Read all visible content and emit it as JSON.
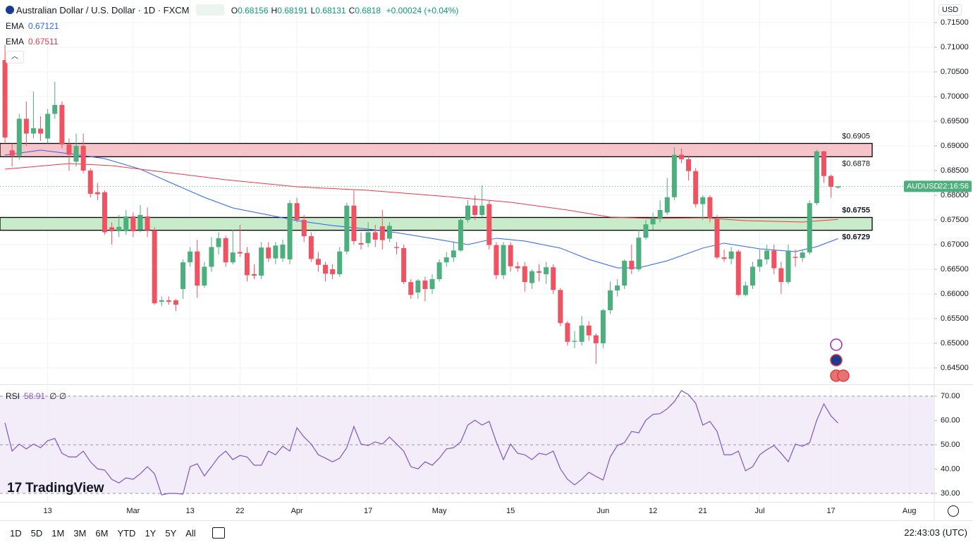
{
  "header": {
    "ohlc": [
      {
        "label": "O",
        "value": 0.68156
      },
      {
        "label": "H",
        "value": 0.68191
      },
      {
        "label": "L",
        "value": 0.68131
      },
      {
        "label": "C",
        "value": 0.6818
      }
    ],
    "change": "+0.00024 (+0.04%)",
    "currency": "USD"
  },
  "chart_data": [
    {
      "type": "candlestick",
      "title": "Australian Dollar / U.S. Dollar · 1D · FXCM",
      "up_color": "#4caf7d",
      "down_color": "#ef5361",
      "xlim": [
        -0.7,
        130.5
      ],
      "ylim": [
        0.64171,
        0.71957
      ],
      "xticks": [
        {
          "value": 6,
          "label": "13"
        },
        {
          "value": 18,
          "label": "Mar"
        },
        {
          "value": 26,
          "label": "13"
        },
        {
          "value": 33,
          "label": "22"
        },
        {
          "value": 41,
          "label": "Apr"
        },
        {
          "value": 51,
          "label": "17"
        },
        {
          "value": 61,
          "label": "May"
        },
        {
          "value": 71,
          "label": "15"
        },
        {
          "value": 84,
          "label": "Jun"
        },
        {
          "value": 91,
          "label": "12"
        },
        {
          "value": 98,
          "label": "21"
        },
        {
          "value": 106,
          "label": "Jul"
        },
        {
          "value": 116,
          "label": "17"
        },
        {
          "value": 127,
          "label": "Aug"
        }
      ],
      "yticks": [
        {
          "value": 0.715,
          "label": "0.71500"
        },
        {
          "value": 0.71,
          "label": "0.71000"
        },
        {
          "value": 0.705,
          "label": "0.70500"
        },
        {
          "value": 0.7,
          "label": "0.70000"
        },
        {
          "value": 0.695,
          "label": "0.69500"
        },
        {
          "value": 0.69,
          "label": "0.69000"
        },
        {
          "value": 0.685,
          "label": "0.68500"
        },
        {
          "value": 0.68,
          "label": "0.68000"
        },
        {
          "value": 0.675,
          "label": "0.67500"
        },
        {
          "value": 0.67,
          "label": "0.67000"
        },
        {
          "value": 0.665,
          "label": "0.66500"
        },
        {
          "value": 0.66,
          "label": "0.66000"
        },
        {
          "value": 0.655,
          "label": "0.65500"
        },
        {
          "value": 0.65,
          "label": "0.65000"
        },
        {
          "value": 0.645,
          "label": "0.64500"
        }
      ],
      "grid": true,
      "open": [
        0.7074,
        0.6891,
        0.688,
        0.6955,
        0.6925,
        0.6935,
        0.6915,
        0.6965,
        0.6983,
        0.6903,
        0.6868,
        0.69,
        0.685,
        0.6806,
        0.6806,
        0.6735,
        0.6727,
        0.6727,
        0.6757,
        0.673,
        0.6757,
        0.6729,
        0.6584,
        0.6587,
        0.6587,
        0.661,
        0.6664,
        0.6686,
        0.6617,
        0.6655,
        0.6695,
        0.6713,
        0.6664,
        0.6685,
        0.6683,
        0.664,
        0.6637,
        0.6694,
        0.6672,
        0.6672,
        0.667,
        0.6784,
        0.675,
        0.6717,
        0.6671,
        0.6659,
        0.665,
        0.664,
        0.6686,
        0.6779,
        0.6703,
        0.6703,
        0.6725,
        0.6737,
        0.6712,
        0.6695,
        0.6693,
        0.6624,
        0.6603,
        0.6627,
        0.661,
        0.663,
        0.6664,
        0.6674,
        0.6688,
        0.675,
        0.6779,
        0.676,
        0.6782,
        0.6699,
        0.6638,
        0.6699,
        0.6656,
        0.6656,
        0.6622,
        0.6646,
        0.664,
        0.6654,
        0.6608,
        0.6541,
        0.6503,
        0.6503,
        0.6536,
        0.6516,
        0.65,
        0.6567,
        0.6607,
        0.6617,
        0.6667,
        0.665,
        0.6714,
        0.6741,
        0.6753,
        0.6765,
        0.6796,
        0.6882,
        0.6873,
        0.6849,
        0.6782,
        0.6796,
        0.6753,
        0.6674,
        0.6671,
        0.6686,
        0.6598,
        0.6617,
        0.6655,
        0.667,
        0.6688,
        0.6652,
        0.6624,
        0.6675,
        0.6673,
        0.6684,
        0.6784,
        0.6889,
        0.6839,
        0.68156
      ],
      "high": [
        0.7105,
        0.6905,
        0.6965,
        0.699,
        0.701,
        0.696,
        0.6975,
        0.703,
        0.699,
        0.6915,
        0.6925,
        0.6925,
        0.6855,
        0.6825,
        0.681,
        0.6745,
        0.676,
        0.677,
        0.6765,
        0.678,
        0.6775,
        0.6735,
        0.6595,
        0.6595,
        0.659,
        0.667,
        0.6695,
        0.671,
        0.6665,
        0.6715,
        0.6725,
        0.6718,
        0.673,
        0.674,
        0.6695,
        0.666,
        0.6705,
        0.6705,
        0.6705,
        0.671,
        0.679,
        0.6795,
        0.676,
        0.6725,
        0.6685,
        0.6665,
        0.666,
        0.6695,
        0.6785,
        0.681,
        0.6725,
        0.6745,
        0.674,
        0.677,
        0.6745,
        0.6705,
        0.67,
        0.663,
        0.663,
        0.6635,
        0.664,
        0.667,
        0.6685,
        0.6705,
        0.6755,
        0.679,
        0.68,
        0.682,
        0.679,
        0.6705,
        0.6705,
        0.6705,
        0.6665,
        0.6665,
        0.665,
        0.666,
        0.6665,
        0.666,
        0.6612,
        0.6545,
        0.6525,
        0.6555,
        0.6545,
        0.652,
        0.657,
        0.6625,
        0.663,
        0.667,
        0.67,
        0.673,
        0.675,
        0.6765,
        0.679,
        0.6835,
        0.6897,
        0.6895,
        0.688,
        0.6855,
        0.68,
        0.68,
        0.676,
        0.669,
        0.6695,
        0.669,
        0.6625,
        0.6665,
        0.669,
        0.67,
        0.67,
        0.6665,
        0.67,
        0.669,
        0.669,
        0.679,
        0.6892,
        0.689,
        0.6842,
        0.68191
      ],
      "low": [
        0.6905,
        0.6858,
        0.6872,
        0.69,
        0.6915,
        0.691,
        0.6905,
        0.6955,
        0.6895,
        0.685,
        0.6858,
        0.6845,
        0.6795,
        0.679,
        0.672,
        0.67,
        0.6715,
        0.672,
        0.6715,
        0.6725,
        0.6715,
        0.6578,
        0.6575,
        0.6578,
        0.6565,
        0.659,
        0.6655,
        0.6592,
        0.6612,
        0.6645,
        0.668,
        0.6655,
        0.666,
        0.6675,
        0.6625,
        0.663,
        0.663,
        0.6665,
        0.666,
        0.6665,
        0.666,
        0.6745,
        0.6705,
        0.6665,
        0.6645,
        0.6625,
        0.663,
        0.6635,
        0.668,
        0.67,
        0.669,
        0.6695,
        0.6695,
        0.669,
        0.6705,
        0.668,
        0.662,
        0.659,
        0.659,
        0.6585,
        0.66,
        0.6625,
        0.6655,
        0.6665,
        0.6685,
        0.6745,
        0.675,
        0.6755,
        0.669,
        0.663,
        0.663,
        0.6645,
        0.6645,
        0.6605,
        0.661,
        0.6625,
        0.662,
        0.66,
        0.6535,
        0.6495,
        0.649,
        0.6495,
        0.6505,
        0.6458,
        0.649,
        0.656,
        0.6595,
        0.661,
        0.664,
        0.6645,
        0.671,
        0.673,
        0.6745,
        0.676,
        0.679,
        0.6865,
        0.683,
        0.6775,
        0.675,
        0.6745,
        0.667,
        0.6665,
        0.666,
        0.6595,
        0.6595,
        0.661,
        0.6645,
        0.666,
        0.664,
        0.66,
        0.662,
        0.6655,
        0.6665,
        0.668,
        0.678,
        0.6825,
        0.6795,
        0.68131
      ],
      "close": [
        0.6917,
        0.688,
        0.6955,
        0.6925,
        0.6936,
        0.6925,
        0.6965,
        0.6983,
        0.6903,
        0.6882,
        0.69,
        0.685,
        0.6803,
        0.6802,
        0.6725,
        0.6727,
        0.6736,
        0.6757,
        0.6727,
        0.676,
        0.6729,
        0.6581,
        0.6587,
        0.6584,
        0.6578,
        0.6664,
        0.6686,
        0.6617,
        0.6655,
        0.6695,
        0.6713,
        0.6664,
        0.6684,
        0.6682,
        0.6638,
        0.6637,
        0.6694,
        0.6672,
        0.6698,
        0.67,
        0.6784,
        0.675,
        0.6717,
        0.6671,
        0.6659,
        0.6641,
        0.664,
        0.6686,
        0.6779,
        0.6707,
        0.67,
        0.6725,
        0.671,
        0.6709,
        0.6738,
        0.6693,
        0.6624,
        0.6598,
        0.6627,
        0.661,
        0.663,
        0.6664,
        0.6674,
        0.6688,
        0.675,
        0.6779,
        0.676,
        0.6779,
        0.6699,
        0.6638,
        0.6699,
        0.6656,
        0.6652,
        0.6624,
        0.6646,
        0.6643,
        0.6654,
        0.6608,
        0.6541,
        0.6503,
        0.6505,
        0.6536,
        0.6516,
        0.65,
        0.6567,
        0.6607,
        0.6617,
        0.6667,
        0.665,
        0.6714,
        0.6741,
        0.6753,
        0.677,
        0.6796,
        0.6882,
        0.6873,
        0.6849,
        0.6782,
        0.6796,
        0.6753,
        0.6674,
        0.6671,
        0.6686,
        0.6598,
        0.6617,
        0.6655,
        0.667,
        0.6688,
        0.6652,
        0.6624,
        0.6688,
        0.6673,
        0.6684,
        0.6784,
        0.6889,
        0.6839,
        0.6817,
        0.6818
      ],
      "lines": [
        {
          "name": "EMA",
          "color": "#2962ff",
          "last": 0.67121,
          "x": [
            0,
            5,
            9,
            14,
            19,
            23,
            28,
            32,
            37,
            41,
            46,
            51,
            55,
            61,
            65,
            69,
            73,
            78,
            82,
            86,
            89,
            93,
            98,
            101,
            106,
            111,
            114,
            117
          ],
          "values": [
            0.68814,
            0.68914,
            0.68843,
            0.68743,
            0.68529,
            0.68271,
            0.67957,
            0.67743,
            0.676,
            0.67486,
            0.67386,
            0.67314,
            0.67243,
            0.671,
            0.67,
            0.67129,
            0.67071,
            0.66929,
            0.667,
            0.66529,
            0.66529,
            0.66671,
            0.66929,
            0.67029,
            0.66914,
            0.66857,
            0.66957,
            0.67121
          ]
        },
        {
          "name": "EMA",
          "color": "#f23645",
          "last": 0.67511,
          "x": [
            0,
            9,
            15,
            23,
            31,
            41,
            51,
            61,
            71,
            79,
            85,
            91,
            98,
            104,
            112,
            117
          ],
          "values": [
            0.68529,
            0.68643,
            0.686,
            0.68457,
            0.68314,
            0.68171,
            0.681,
            0.67986,
            0.67857,
            0.677,
            0.67557,
            0.67529,
            0.67543,
            0.67486,
            0.67457,
            0.67511
          ]
        }
      ],
      "zones": [
        {
          "color": "#f7c5c9",
          "top": {
            "value": 0.6905,
            "label": "$0.6905"
          },
          "bottom": {
            "value": 0.6878,
            "label": "$0.6878"
          }
        },
        {
          "color": "#c8ebc9",
          "top": {
            "value": 0.6755,
            "label": "$0.6755"
          },
          "bottom": {
            "value": 0.6729,
            "label": "$0.6729"
          }
        }
      ],
      "last_price": {
        "name": "AUDUSD",
        "time": "22:16:56",
        "value": 0.6818,
        "color": "#4caf7d"
      }
    },
    {
      "type": "line",
      "name": "RSI",
      "last": 58.91,
      "inputs": "∅ ∅",
      "color": "#7e57c2",
      "xlim": [
        -0.7,
        130.5
      ],
      "ylim": [
        26.52,
        74.64
      ],
      "yticks": [
        {
          "value": 70,
          "label": "70.00"
        },
        {
          "value": 60,
          "label": "60.00"
        },
        {
          "value": 50,
          "label": "50.00"
        },
        {
          "value": 40,
          "label": "40.00"
        },
        {
          "value": 30,
          "label": "30.00"
        }
      ],
      "band": [
        30,
        70
      ],
      "levels": [
        70,
        50,
        30
      ],
      "values": [
        59,
        47.4,
        50.3,
        48.3,
        50.3,
        48.8,
        51.7,
        52.6,
        46.5,
        45,
        45,
        47.4,
        43,
        40.1,
        39.6,
        35.8,
        34.3,
        36.4,
        35.8,
        38.1,
        41,
        38.1,
        29.4,
        30,
        30,
        29.7,
        41,
        42.2,
        37.2,
        41,
        45,
        47.4,
        43.9,
        45.6,
        45,
        41.6,
        41.6,
        47.4,
        45.9,
        49.4,
        47.4,
        57,
        53.2,
        50.3,
        45.9,
        44.5,
        43,
        44.5,
        48.8,
        57.5,
        50.3,
        49.7,
        51.2,
        50.3,
        53.2,
        50.3,
        47.4,
        41,
        40.1,
        43,
        41.6,
        44.5,
        48.3,
        48.8,
        51.2,
        58.1,
        60.1,
        58.1,
        59.6,
        51.2,
        43.9,
        50.3,
        46.5,
        45.9,
        43.9,
        46.5,
        45.9,
        47.4,
        40.1,
        35.8,
        33.5,
        35.8,
        38.7,
        37,
        35.5,
        45,
        49.7,
        50.9,
        55.5,
        54.9,
        60.1,
        62.5,
        62.8,
        64.8,
        67.7,
        72.3,
        70.6,
        67.1,
        58.1,
        59.6,
        55.5,
        45.9,
        45.9,
        47.4,
        39.3,
        41,
        45.9,
        48,
        49.7,
        46.5,
        43,
        50.3,
        49.4,
        50.9,
        60.1,
        66.8,
        61.9,
        58.91
      ]
    }
  ],
  "watermark": "TradingView",
  "toolbar": {
    "ranges": [
      "1D",
      "5D",
      "1M",
      "3M",
      "6M",
      "YTD",
      "1Y",
      "5Y",
      "All"
    ],
    "clock": "22:43:03 (UTC)"
  }
}
